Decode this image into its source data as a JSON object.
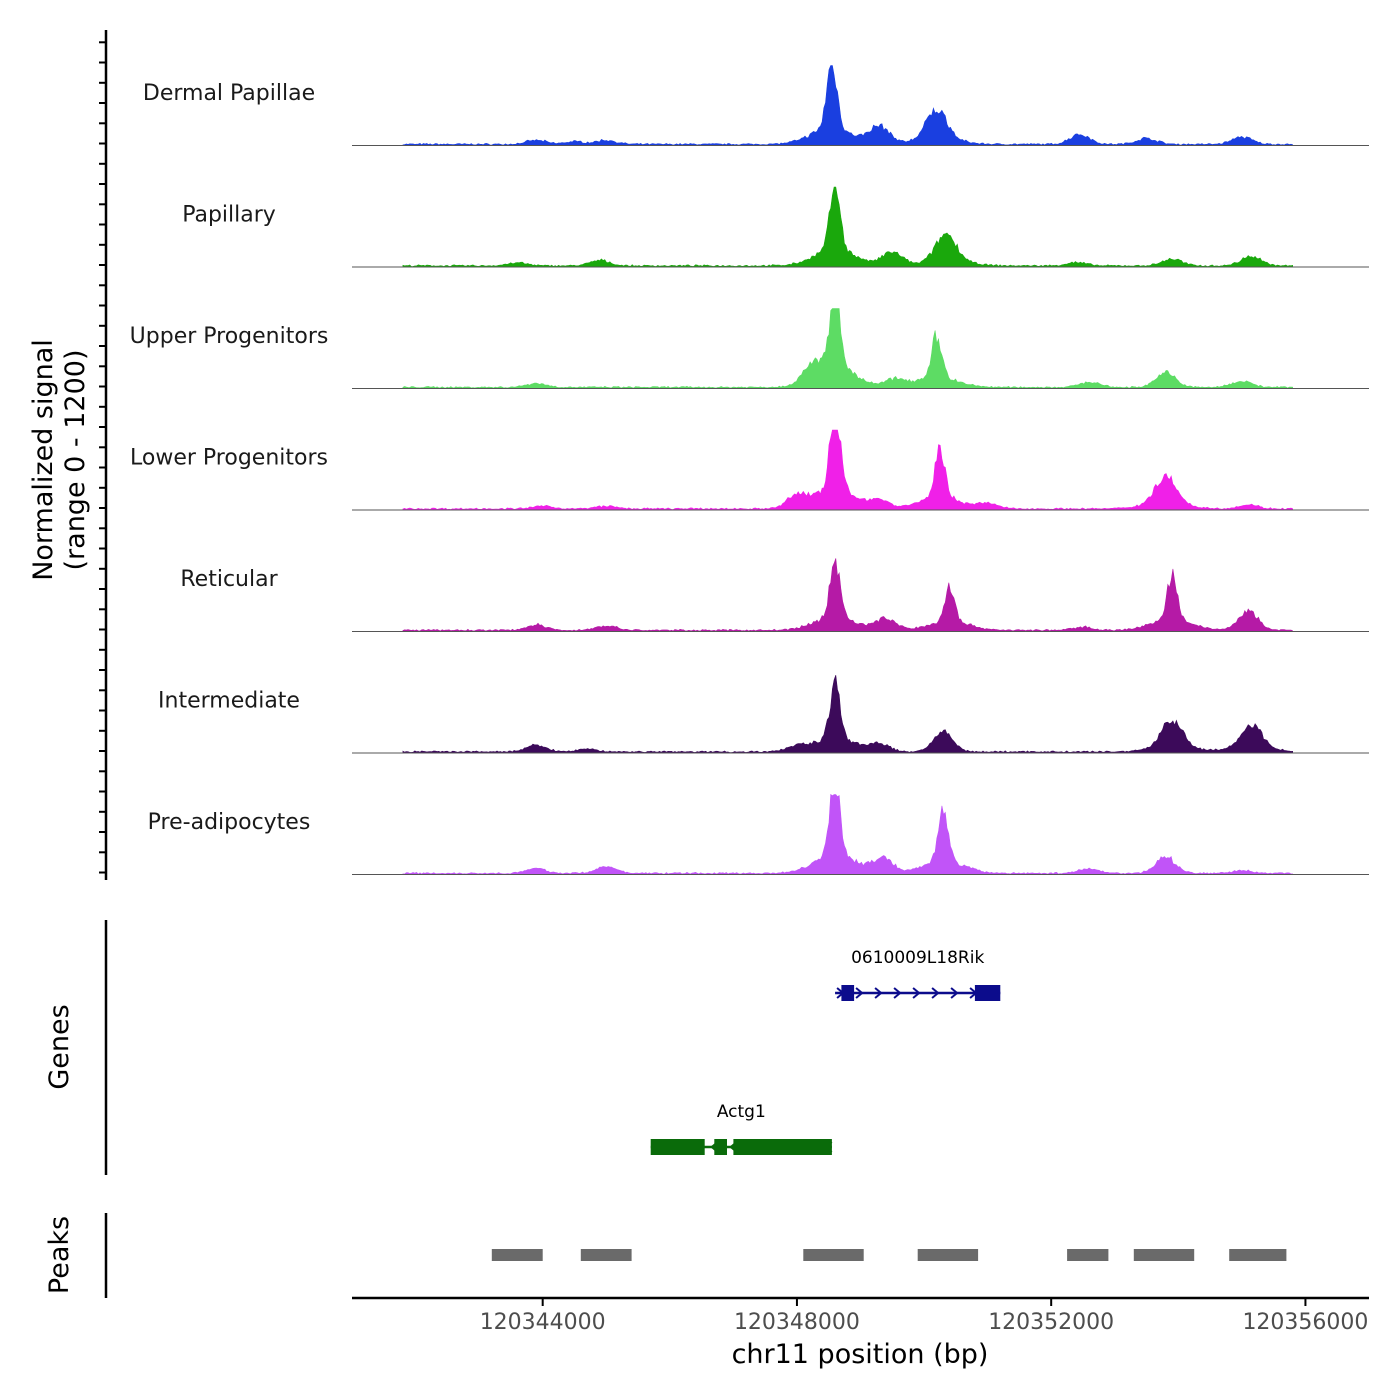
{
  "chart_data": {
    "type": "area",
    "signal_axis_label": "Normalized signal",
    "signal_axis_range_label": "(range 0 - 1200)",
    "ylim": [
      0,
      1200
    ],
    "genes_label": "Genes",
    "peaks_label": "Peaks",
    "xlabel": "chr11 position (bp)",
    "xlim": [
      120341000,
      120357000
    ],
    "x_ticks": [
      {
        "value": 120344000,
        "label": "120344000"
      },
      {
        "value": 120348000,
        "label": "120348000"
      },
      {
        "value": 120352000,
        "label": "120352000"
      },
      {
        "value": 120356000,
        "label": "120356000"
      }
    ],
    "tracks": [
      {
        "name": "Dermal Papillae",
        "color": "#1a3fe0",
        "peaks": [
          [
            120343900,
            60
          ],
          [
            120344500,
            40
          ],
          [
            120345000,
            60
          ],
          [
            120348550,
            1000
          ],
          [
            120349300,
            260
          ],
          [
            120350200,
            420
          ],
          [
            120352450,
            150
          ],
          [
            120353500,
            90
          ],
          [
            120355000,
            110
          ]
        ]
      },
      {
        "name": "Papillary",
        "color": "#1aa80c",
        "peaks": [
          [
            120343600,
            45
          ],
          [
            120344900,
            80
          ],
          [
            120348600,
            1000
          ],
          [
            120349500,
            200
          ],
          [
            120350350,
            380
          ],
          [
            120352400,
            50
          ],
          [
            120353900,
            100
          ],
          [
            120355150,
            150
          ]
        ]
      },
      {
        "name": "Upper Progenitors",
        "color": "#5ddc64",
        "peaks": [
          [
            120343900,
            60
          ],
          [
            120348250,
            230
          ],
          [
            120348600,
            1200
          ],
          [
            120349550,
            110
          ],
          [
            120350200,
            620
          ],
          [
            120352600,
            80
          ],
          [
            120353800,
            220
          ],
          [
            120355000,
            100
          ]
        ]
      },
      {
        "name": "Lower Progenitors",
        "color": "#f020e8",
        "peaks": [
          [
            120344000,
            40
          ],
          [
            120345000,
            40
          ],
          [
            120348000,
            180
          ],
          [
            120348600,
            1200
          ],
          [
            120349300,
            120
          ],
          [
            120350250,
            720
          ],
          [
            120351000,
            80
          ],
          [
            120353800,
            400
          ],
          [
            120355100,
            60
          ]
        ]
      },
      {
        "name": "Reticular",
        "color": "#b51aa6",
        "peaks": [
          [
            120343900,
            80
          ],
          [
            120345000,
            70
          ],
          [
            120348600,
            820
          ],
          [
            120349400,
            170
          ],
          [
            120350400,
            520
          ],
          [
            120352500,
            50
          ],
          [
            120353900,
            660
          ],
          [
            120355100,
            280
          ]
        ]
      },
      {
        "name": "Intermediate",
        "color": "#3c0a5a",
        "peaks": [
          [
            120343900,
            100
          ],
          [
            120344700,
            40
          ],
          [
            120348000,
            80
          ],
          [
            120348600,
            820
          ],
          [
            120349300,
            110
          ],
          [
            120350300,
            300
          ],
          [
            120353900,
            380
          ],
          [
            120355150,
            330
          ]
        ]
      },
      {
        "name": "Pre-adipocytes",
        "color": "#c154f8",
        "peaks": [
          [
            120343900,
            70
          ],
          [
            120345000,
            100
          ],
          [
            120348600,
            1150
          ],
          [
            120349350,
            220
          ],
          [
            120350300,
            750
          ],
          [
            120352600,
            70
          ],
          [
            120353800,
            240
          ],
          [
            120355000,
            40
          ]
        ]
      }
    ],
    "genes": [
      {
        "name": "0610009L18Rik",
        "color": "#0c0c8c",
        "start": 120348600,
        "end": 120351200,
        "strand": "+",
        "exons": [
          [
            120348700,
            120348900
          ],
          [
            120350800,
            120351200
          ]
        ]
      },
      {
        "name": "Actg1",
        "color": "#0a6b0a",
        "start": 120345700,
        "end": 120348550,
        "strand": "-",
        "exons": [
          [
            120345700,
            120346550
          ],
          [
            120346700,
            120346900
          ],
          [
            120347000,
            120348550
          ]
        ]
      }
    ],
    "peak_regions": [
      [
        120343200,
        120344000
      ],
      [
        120344600,
        120345400
      ],
      [
        120348100,
        120349050
      ],
      [
        120349900,
        120350850
      ],
      [
        120352250,
        120352900
      ],
      [
        120353300,
        120354250
      ],
      [
        120354800,
        120355700
      ]
    ],
    "peak_region_color": "#6a6a6a"
  }
}
